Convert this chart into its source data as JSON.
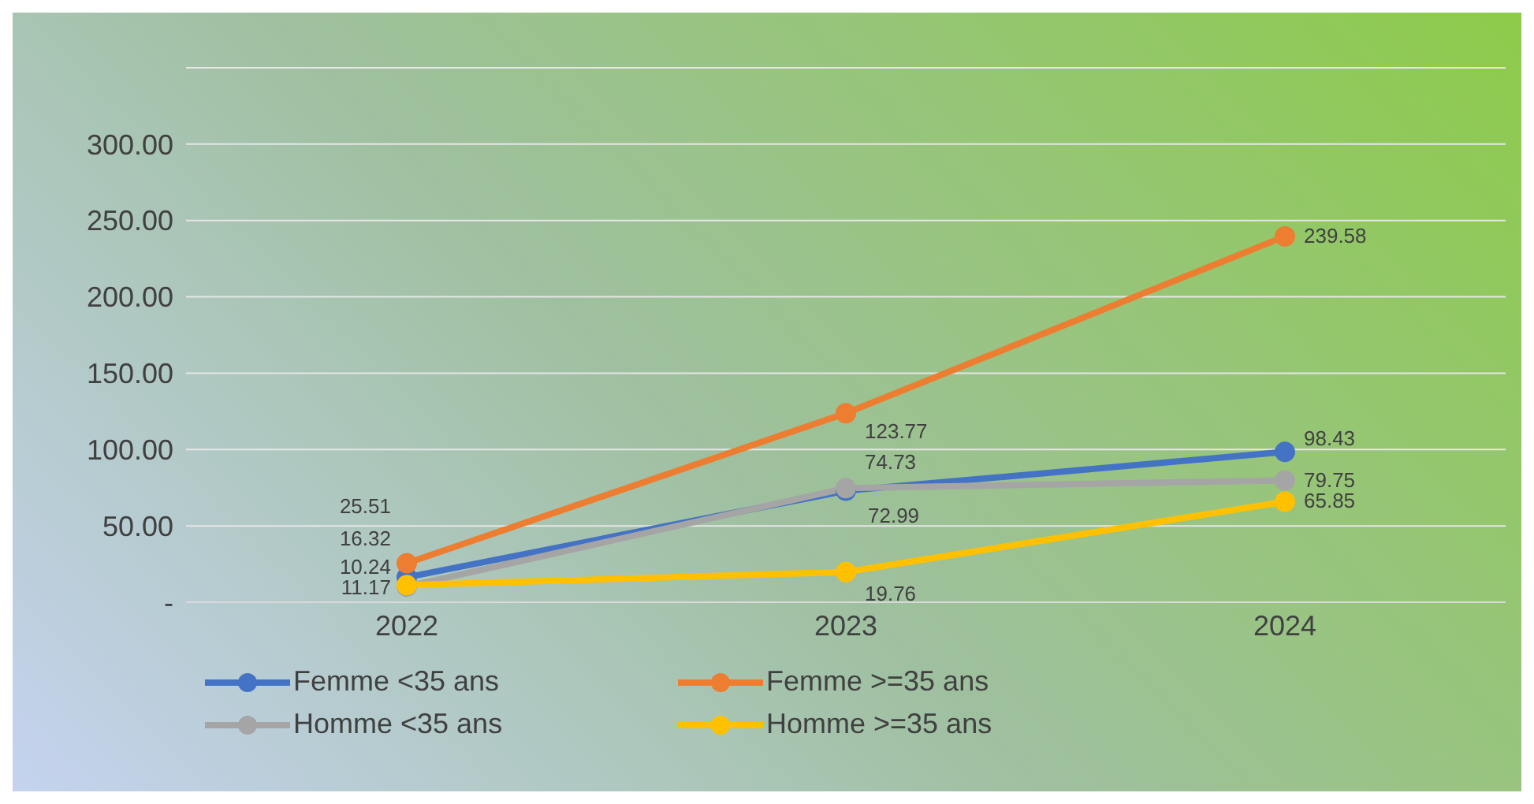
{
  "chart_data": {
    "type": "line",
    "categories": [
      "2022",
      "2023",
      "2024"
    ],
    "series": [
      {
        "name": "Femme <35 ans",
        "color": "#4472c4",
        "values": [
          16.32,
          72.99,
          98.43
        ]
      },
      {
        "name": "Femme >=35 ans",
        "color": "#ed7d31",
        "values": [
          25.51,
          123.77,
          239.58
        ]
      },
      {
        "name": "Homme <35 ans",
        "color": "#a5a5a5",
        "values": [
          10.24,
          74.73,
          79.75
        ]
      },
      {
        "name": "Homme >=35 ans",
        "color": "#ffc000",
        "values": [
          11.17,
          19.76,
          65.85
        ]
      }
    ],
    "ylim": [
      0,
      350
    ],
    "yticks": [
      {
        "value": 0,
        "label": "-"
      },
      {
        "value": 50,
        "label": "50.00"
      },
      {
        "value": 100,
        "label": "100.00"
      },
      {
        "value": 150,
        "label": "150.00"
      },
      {
        "value": 200,
        "label": "200.00"
      },
      {
        "value": 250,
        "label": "250.00"
      },
      {
        "value": 300,
        "label": "300.00"
      }
    ],
    "grid": "y",
    "legend": "bottom",
    "marker": "circle",
    "line_style": "solid",
    "data_labels": true
  }
}
